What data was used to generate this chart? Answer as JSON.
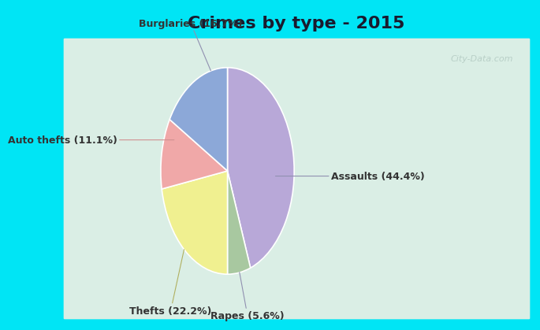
{
  "title": "Crimes by type - 2015",
  "labels": [
    "Assaults",
    "Rapes",
    "Thefts",
    "Auto thefts",
    "Burglaries"
  ],
  "values": [
    44.4,
    5.6,
    22.2,
    11.1,
    16.7
  ],
  "colors": [
    "#b8a8d8",
    "#a8c8a0",
    "#f0f090",
    "#f0a8a8",
    "#8ca8d8"
  ],
  "label_texts": [
    "Assaults (44.4%)",
    "Rapes (5.6%)",
    "Thefts (22.2%)",
    "Auto thefts (11.1%)",
    "Burglaries (16.7%)"
  ],
  "background_top": "#00e5f5",
  "background_main_color": "#c8e8d8",
  "title_fontsize": 16,
  "label_fontsize": 9,
  "startangle": 90,
  "watermark": "City-Data.com",
  "annotations": [
    {
      "label": "Assaults (44.4%)",
      "ha": "left",
      "color": "#444444"
    },
    {
      "label": "Rapes (5.6%)",
      "ha": "center",
      "color": "#444444"
    },
    {
      "label": "Thefts (22.2%)",
      "ha": "center",
      "color": "#444444"
    },
    {
      "label": "Auto thefts (11.1%)",
      "ha": "right",
      "color": "#444444"
    },
    {
      "label": "Burglaries (16.7%)",
      "ha": "center",
      "color": "#444444"
    }
  ]
}
